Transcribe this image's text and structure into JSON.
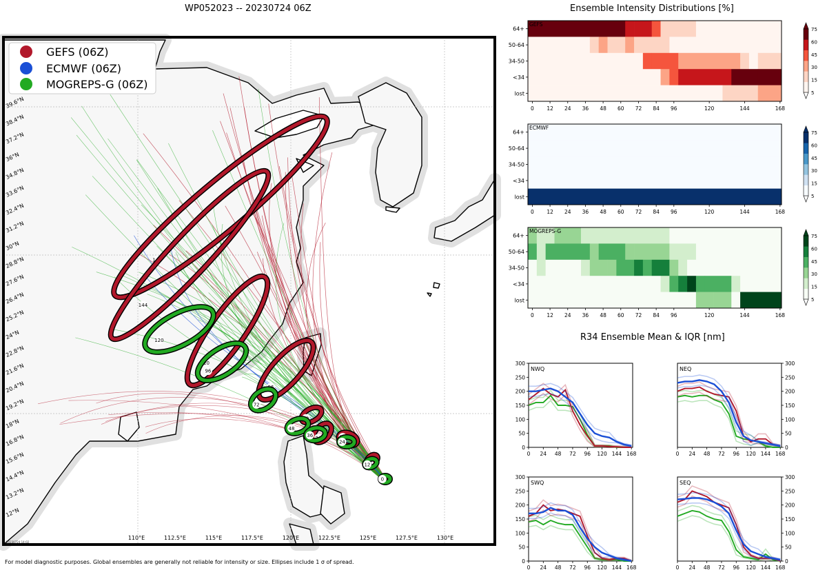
{
  "map": {
    "title": "WP052023 -- 20230724 06Z",
    "legend": [
      {
        "label": "GEFS (06Z)",
        "color": "#b2182b"
      },
      {
        "label": "ECMWF (06Z)",
        "color": "#1a4fd6"
      },
      {
        "label": "MOGREPS-G (06Z)",
        "color": "#22aa22"
      }
    ],
    "lat_labels": [
      "39.6°N",
      "38.4°N",
      "37.2°N",
      "36°N",
      "34.8°N",
      "33.6°N",
      "32.4°N",
      "31.2°N",
      "30°N",
      "28.8°N",
      "27.6°N",
      "26.4°N",
      "25.2°N",
      "24°N",
      "22.8°N",
      "21.6°N",
      "20.4°N",
      "19.2°N",
      "18°N",
      "16.8°N",
      "15.6°N",
      "14.4°N",
      "13.2°N",
      "12°N"
    ],
    "lon_labels": [
      "110°E",
      "112.5°E",
      "115°E",
      "117.5°E",
      "120°E",
      "122.5°E",
      "125°E",
      "127.5°E",
      "130°E"
    ],
    "stamp": "20230724 14:02",
    "footnote": "For model diagnostic purposes. Global ensembles are generally not reliable for intensity or size. Ellipses include 1 σ of spread.",
    "ellipse_labels": [
      "0",
      "12",
      "24",
      "36",
      "48",
      "72",
      "96",
      "120",
      "144"
    ]
  },
  "chart_data": [
    {
      "type": "heatmap",
      "title": "Ensemble Intensity Distributions [%]",
      "panel": "GEFS",
      "colormap": "Reds",
      "x_ticks": [
        0,
        12,
        24,
        36,
        48,
        60,
        72,
        84,
        96,
        120,
        144,
        168
      ],
      "y_categories": [
        "64+",
        "50-64",
        "34-50",
        "<34",
        "lost"
      ],
      "colorbar_ticks": [
        5,
        15,
        30,
        45,
        60,
        75
      ]
    },
    {
      "type": "heatmap",
      "panel": "ECMWF",
      "colormap": "Blues",
      "x_ticks": [
        0,
        12,
        24,
        36,
        48,
        60,
        72,
        84,
        96,
        120,
        144,
        168
      ],
      "y_categories": [
        "64+",
        "50-64",
        "34-50",
        "<34",
        "lost"
      ],
      "colorbar_ticks": [
        5,
        15,
        30,
        45,
        60,
        75
      ]
    },
    {
      "type": "heatmap",
      "panel": "MOGREPS-G",
      "colormap": "Greens",
      "x_ticks": [
        0,
        12,
        24,
        36,
        48,
        60,
        72,
        84,
        96,
        120,
        144,
        168
      ],
      "y_categories": [
        "64+",
        "50-64",
        "34-50",
        "<34",
        "lost"
      ],
      "colorbar_ticks": [
        5,
        15,
        30,
        45,
        60,
        75
      ]
    },
    {
      "type": "line",
      "title": "R34 Ensemble Mean & IQR [nm]",
      "quadrants": [
        "NWQ",
        "NEQ",
        "SWQ",
        "SEQ"
      ],
      "x_ticks": [
        0,
        24,
        48,
        72,
        96,
        120,
        144,
        168
      ],
      "y_ticks": [
        0,
        50,
        100,
        150,
        200,
        250,
        300
      ],
      "xlim": [
        0,
        170
      ],
      "ylim": [
        0,
        300
      ],
      "series": {
        "NWQ": {
          "GEFS": [
            170,
            190,
            210,
            190,
            180,
            205,
            130,
            80,
            40,
            5,
            5,
            3,
            2,
            0,
            0
          ],
          "ECMWF": [
            200,
            200,
            205,
            210,
            200,
            180,
            160,
            120,
            80,
            50,
            40,
            35,
            20,
            10,
            5
          ],
          "MOGREPS-G": [
            150,
            160,
            160,
            185,
            150,
            150,
            145,
            100,
            45,
            5,
            5,
            5,
            0,
            0,
            0
          ]
        },
        "NEQ": {
          "GEFS": [
            200,
            210,
            210,
            215,
            200,
            190,
            185,
            180,
            130,
            40,
            20,
            30,
            30,
            10,
            5
          ],
          "ECMWF": [
            230,
            235,
            235,
            240,
            235,
            225,
            200,
            160,
            90,
            40,
            25,
            20,
            15,
            10,
            5
          ],
          "MOGREPS-G": [
            180,
            185,
            180,
            185,
            185,
            170,
            160,
            120,
            40,
            30,
            25,
            20,
            5,
            0,
            0
          ]
        },
        "SWQ": {
          "GEFS": [
            160,
            170,
            200,
            180,
            185,
            180,
            170,
            160,
            90,
            30,
            10,
            5,
            10,
            10,
            0
          ],
          "ECMWF": [
            170,
            170,
            175,
            190,
            180,
            180,
            165,
            120,
            80,
            50,
            30,
            20,
            10,
            5,
            0
          ],
          "MOGREPS-G": [
            140,
            145,
            130,
            145,
            135,
            130,
            130,
            90,
            50,
            10,
            5,
            5,
            5,
            0,
            0
          ]
        },
        "SEQ": {
          "GEFS": [
            210,
            220,
            250,
            240,
            230,
            210,
            200,
            190,
            130,
            50,
            20,
            10,
            10,
            10,
            0
          ],
          "ECMWF": [
            220,
            222,
            225,
            225,
            220,
            210,
            195,
            170,
            110,
            60,
            35,
            25,
            15,
            10,
            5
          ],
          "MOGREPS-G": [
            160,
            170,
            180,
            175,
            160,
            150,
            145,
            105,
            40,
            15,
            10,
            5,
            25,
            5,
            0
          ]
        }
      }
    }
  ]
}
